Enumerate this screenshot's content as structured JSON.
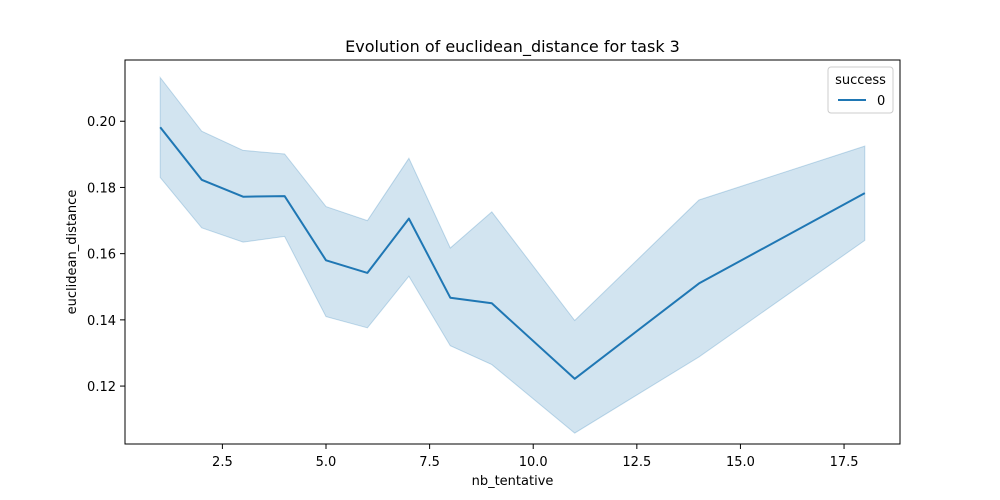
{
  "chart_data": {
    "type": "line",
    "title": "Evolution of euclidean_distance for task 3",
    "xlabel": "nb_tentative",
    "ylabel": "euclidean_distance",
    "xlim": [
      0.15,
      18.85
    ],
    "ylim": [
      0.1025,
      0.2185
    ],
    "xticks": [
      2.5,
      5.0,
      7.5,
      10.0,
      12.5,
      15.0,
      17.5
    ],
    "xtick_labels": [
      "2.5",
      "5.0",
      "7.5",
      "10.0",
      "12.5",
      "15.0",
      "17.5"
    ],
    "yticks": [
      0.12,
      0.14,
      0.16,
      0.18,
      0.2
    ],
    "ytick_labels": [
      "0.12",
      "0.14",
      "0.16",
      "0.18",
      "0.20"
    ],
    "grid": false,
    "legend": {
      "title": "success",
      "placement": "top-right",
      "entries": [
        "0"
      ]
    },
    "series": [
      {
        "name": "0",
        "color": "#1f77b4",
        "band_color": "#1f77b4",
        "x": [
          1,
          2,
          3,
          4,
          5,
          6,
          7,
          8,
          9,
          11,
          14,
          18
        ],
        "y": [
          0.1982,
          0.1823,
          0.1772,
          0.1774,
          0.158,
          0.1542,
          0.1706,
          0.1467,
          0.145,
          0.1222,
          0.151,
          0.1783
        ],
        "lower": [
          0.183,
          0.1678,
          0.1635,
          0.1652,
          0.141,
          0.1376,
          0.1532,
          0.1322,
          0.1265,
          0.1058,
          0.1288,
          0.164
        ],
        "upper": [
          0.2132,
          0.197,
          0.1912,
          0.1901,
          0.1742,
          0.17,
          0.1888,
          0.1617,
          0.1726,
          0.1398,
          0.1762,
          0.1925
        ]
      }
    ]
  }
}
